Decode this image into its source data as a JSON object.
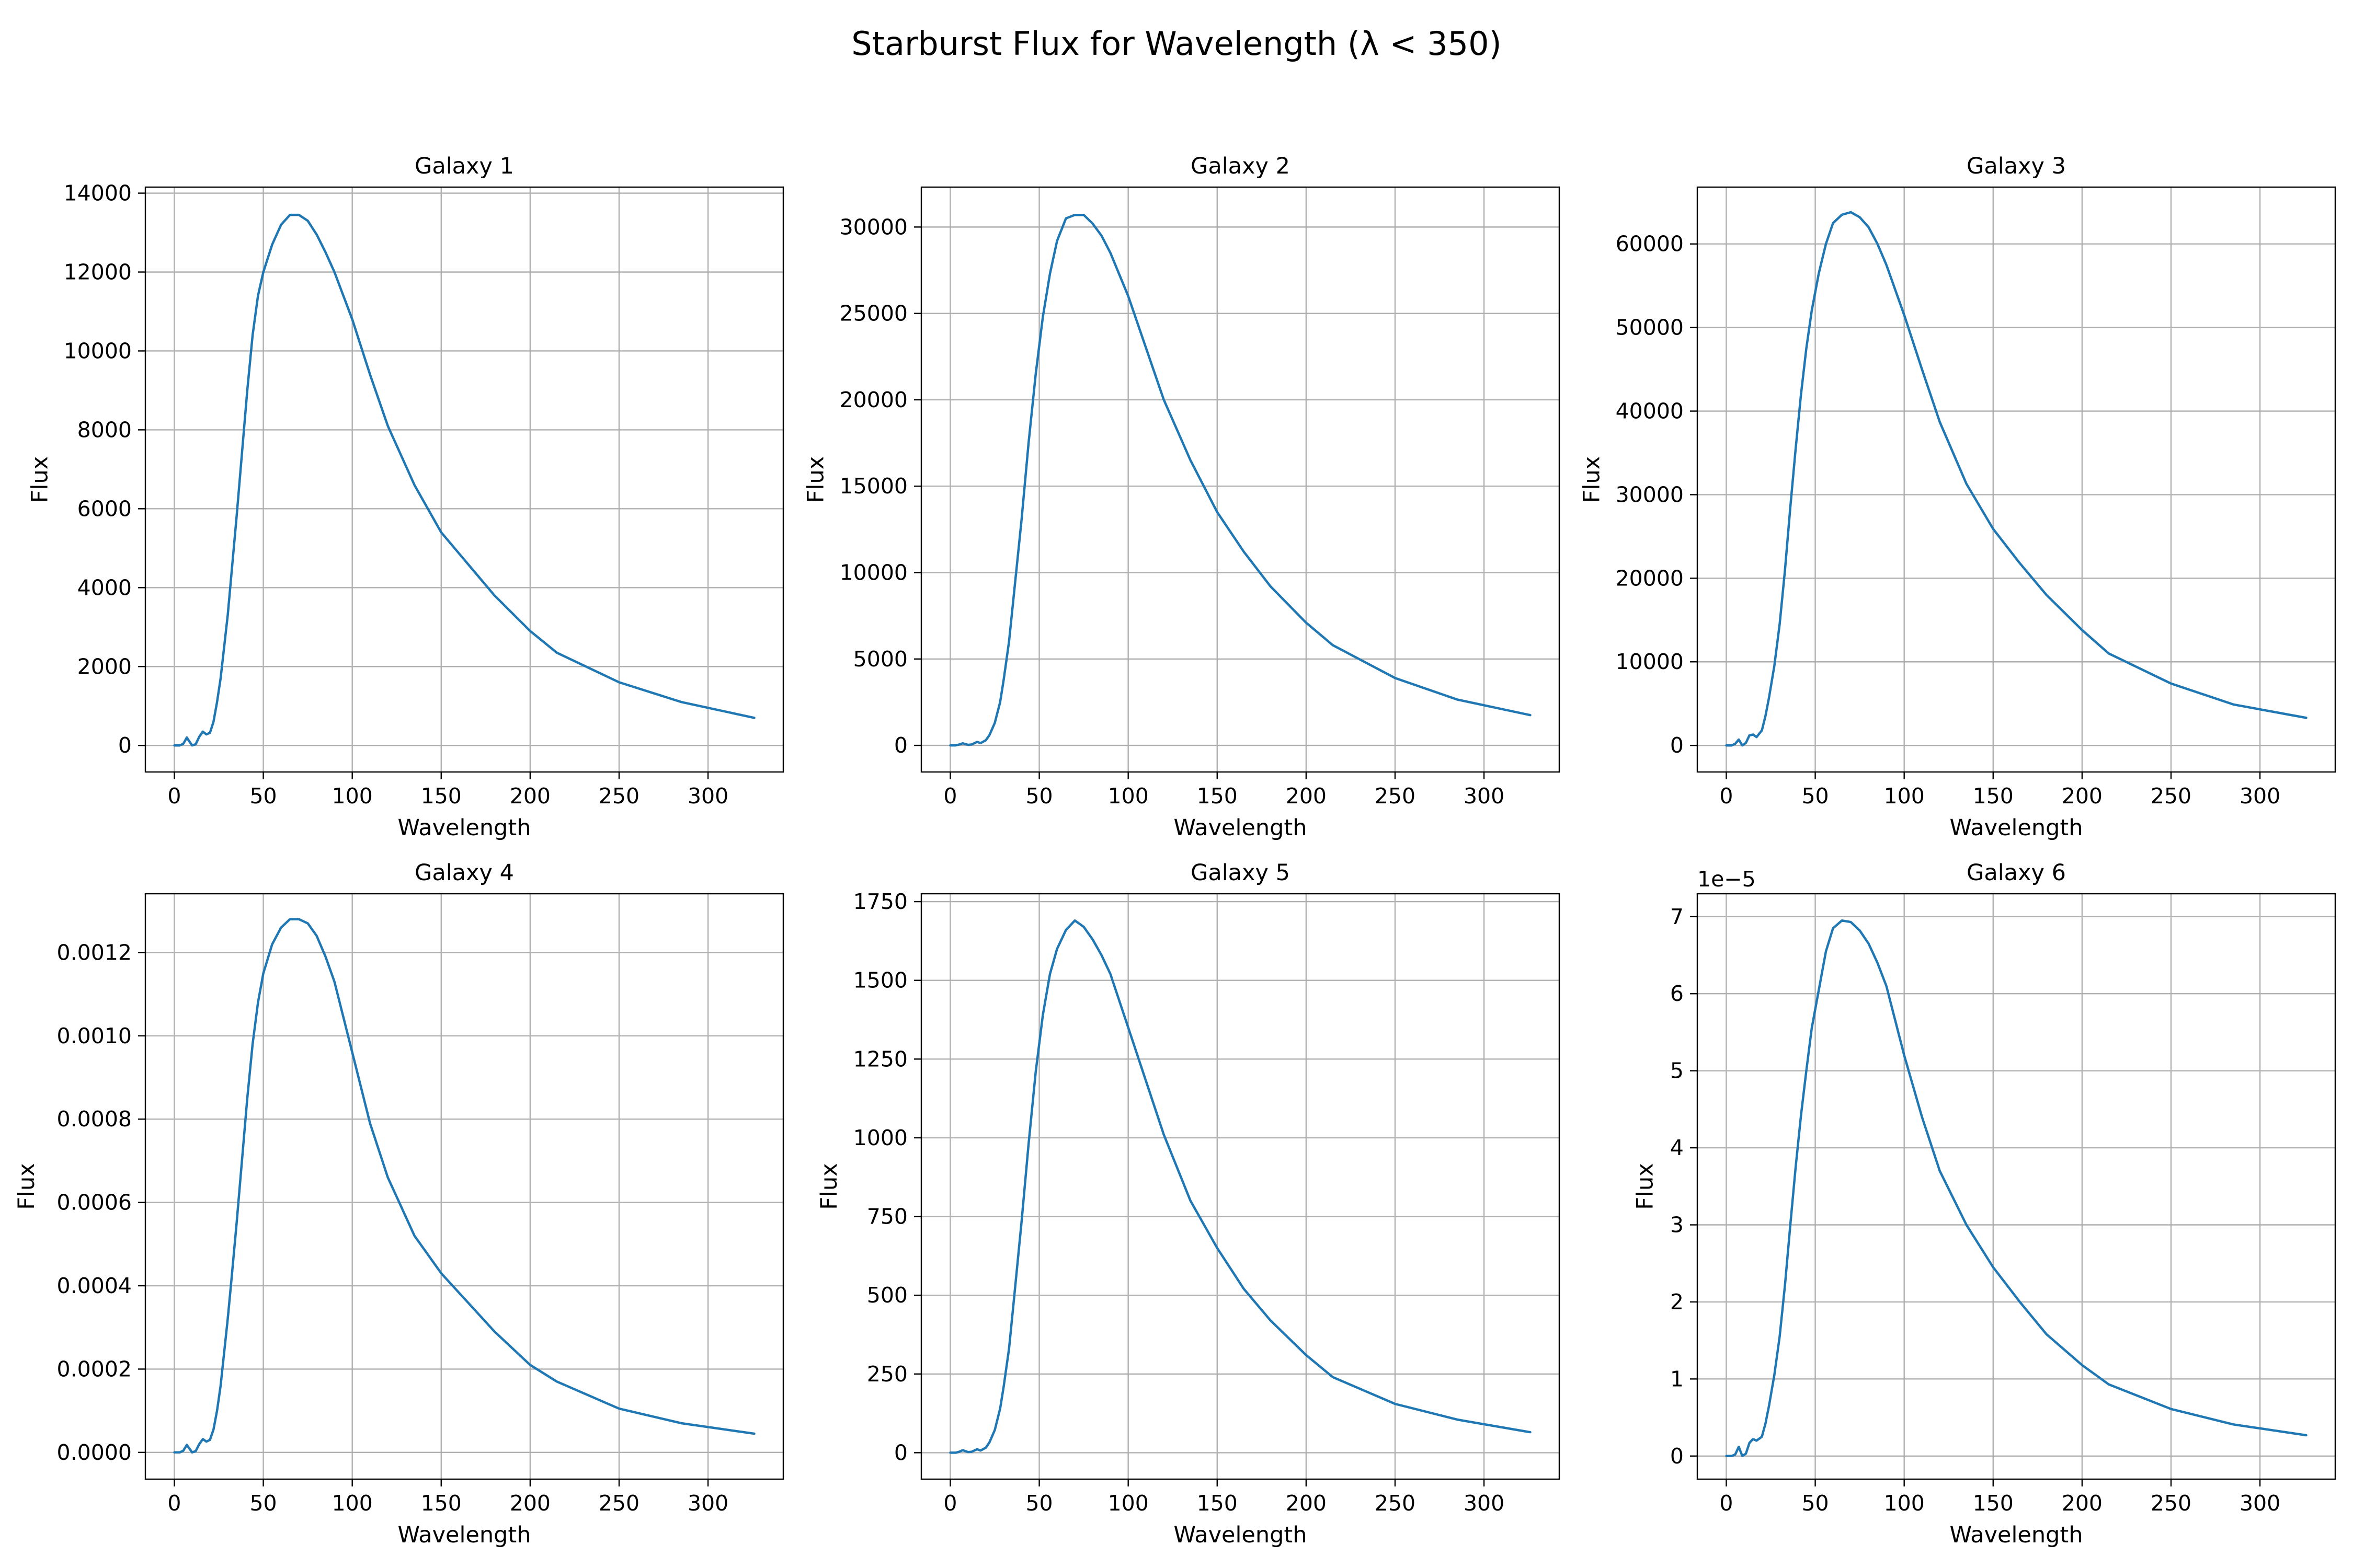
{
  "figure": {
    "suptitle": "Starburst Flux for Wavelength (λ < 350)"
  },
  "chart_data": [
    {
      "type": "line",
      "title": "Galaxy 1",
      "xlabel": "Wavelength",
      "ylabel": "Flux",
      "xlim": [
        -16.3,
        342.3
      ],
      "ylim": [
        -673,
        14153
      ],
      "xticks": [
        0,
        50,
        100,
        150,
        200,
        250,
        300
      ],
      "yticks": [
        0,
        2000,
        4000,
        6000,
        8000,
        10000,
        12000,
        14000
      ],
      "ytick_labels": [
        "0",
        "2000",
        "4000",
        "6000",
        "8000",
        "10000",
        "12000",
        "14000"
      ],
      "offset_label": "",
      "grid": true,
      "color": "#1f77b4",
      "series": [
        {
          "x": [
            0,
            3,
            5,
            7,
            8,
            10,
            12,
            14,
            16,
            18,
            20,
            22,
            24,
            26,
            28,
            30,
            32,
            35,
            38,
            41,
            44,
            47,
            50,
            55,
            60,
            65,
            70,
            75,
            80,
            85,
            90,
            100,
            110,
            120,
            135,
            150,
            165,
            180,
            200,
            215,
            250,
            285,
            326
          ],
          "y": [
            0,
            0,
            40,
            200,
            130,
            0,
            30,
            220,
            350,
            280,
            320,
            600,
            1100,
            1700,
            2500,
            3300,
            4300,
            5800,
            7400,
            9000,
            10400,
            11400,
            12000,
            12700,
            13200,
            13450,
            13450,
            13300,
            12950,
            12500,
            12000,
            10800,
            9400,
            8100,
            6600,
            5400,
            4600,
            3800,
            2900,
            2350,
            1600,
            1100,
            700
          ]
        }
      ]
    },
    {
      "type": "line",
      "title": "Galaxy 2",
      "xlabel": "Wavelength",
      "ylabel": "Flux",
      "xlim": [
        -16.3,
        342.3
      ],
      "ylim": [
        -1540,
        32310
      ],
      "xticks": [
        0,
        50,
        100,
        150,
        200,
        250,
        300
      ],
      "yticks": [
        0,
        5000,
        10000,
        15000,
        20000,
        25000,
        30000
      ],
      "ytick_labels": [
        "0",
        "5000",
        "10000",
        "15000",
        "20000",
        "25000",
        "30000"
      ],
      "offset_label": "",
      "grid": true,
      "color": "#1f77b4",
      "series": [
        {
          "x": [
            0,
            3,
            5,
            7,
            10,
            12,
            15,
            17,
            20,
            22,
            25,
            28,
            30,
            33,
            36,
            40,
            44,
            48,
            52,
            56,
            60,
            65,
            70,
            75,
            80,
            85,
            90,
            100,
            110,
            120,
            135,
            150,
            165,
            180,
            200,
            215,
            250,
            285,
            326
          ],
          "y": [
            0,
            0,
            50,
            120,
            30,
            50,
            200,
            130,
            300,
            600,
            1300,
            2500,
            3800,
            6000,
            9000,
            13000,
            17500,
            21500,
            24800,
            27300,
            29200,
            30500,
            30700,
            30700,
            30200,
            29500,
            28500,
            26000,
            23000,
            20000,
            16500,
            13500,
            11200,
            9200,
            7100,
            5800,
            3900,
            2650,
            1750
          ]
        }
      ]
    },
    {
      "type": "line",
      "title": "Galaxy 3",
      "xlabel": "Wavelength",
      "ylabel": "Flux",
      "xlim": [
        -16.3,
        342.3
      ],
      "ylim": [
        -3180,
        66800
      ],
      "xticks": [
        0,
        50,
        100,
        150,
        200,
        250,
        300
      ],
      "yticks": [
        0,
        10000,
        20000,
        30000,
        40000,
        50000,
        60000
      ],
      "ytick_labels": [
        "0",
        "10000",
        "20000",
        "30000",
        "40000",
        "50000",
        "60000"
      ],
      "offset_label": "",
      "grid": true,
      "color": "#1f77b4",
      "series": [
        {
          "x": [
            0,
            3,
            5,
            7,
            9,
            11,
            13,
            15,
            17,
            20,
            22,
            24,
            27,
            30,
            33,
            36,
            39,
            42,
            45,
            48,
            52,
            56,
            60,
            65,
            70,
            75,
            80,
            85,
            90,
            100,
            110,
            120,
            135,
            150,
            165,
            180,
            200,
            215,
            250,
            285,
            326
          ],
          "y": [
            0,
            0,
            200,
            700,
            0,
            300,
            1200,
            1300,
            1000,
            1800,
            3500,
            5700,
            9500,
            14500,
            21000,
            28500,
            35500,
            42000,
            47500,
            52000,
            56500,
            60000,
            62500,
            63500,
            63800,
            63200,
            62000,
            60000,
            57500,
            51500,
            45000,
            38700,
            31300,
            25900,
            21800,
            18000,
            13800,
            11000,
            7400,
            4900,
            3300
          ]
        }
      ]
    },
    {
      "type": "line",
      "title": "Galaxy 4",
      "xlabel": "Wavelength",
      "ylabel": "Flux",
      "xlim": [
        -16.3,
        342.3
      ],
      "ylim": [
        -6.42e-05,
        0.001341
      ],
      "xticks": [
        0,
        50,
        100,
        150,
        200,
        250,
        300
      ],
      "yticks": [
        0,
        0.0002,
        0.0004,
        0.0006,
        0.0008,
        0.001,
        0.0012
      ],
      "ytick_labels": [
        "0.0000",
        "0.0002",
        "0.0004",
        "0.0006",
        "0.0008",
        "0.0010",
        "0.0012"
      ],
      "offset_label": "",
      "grid": true,
      "color": "#1f77b4",
      "series": [
        {
          "x": [
            0,
            3,
            5,
            7,
            8,
            10,
            12,
            14,
            16,
            18,
            20,
            22,
            24,
            26,
            28,
            30,
            32,
            35,
            38,
            41,
            44,
            47,
            50,
            55,
            60,
            65,
            70,
            75,
            80,
            85,
            90,
            100,
            110,
            120,
            135,
            150,
            165,
            180,
            200,
            215,
            250,
            285,
            326
          ],
          "y": [
            0,
            0,
            4e-06,
            1.8e-05,
            1.2e-05,
            0,
            3e-06,
            2e-05,
            3.2e-05,
            2.6e-05,
            3e-05,
            5.5e-05,
            0.0001,
            0.00016,
            0.00024,
            0.00032,
            0.00041,
            0.00055,
            0.0007,
            0.00085,
            0.00098,
            0.00108,
            0.00115,
            0.00122,
            0.00126,
            0.00128,
            0.00128,
            0.00127,
            0.00124,
            0.00119,
            0.00113,
            0.00096,
            0.00079,
            0.00066,
            0.00052,
            0.00043,
            0.00036,
            0.00029,
            0.00021,
            0.00017,
            0.000105,
            7e-05,
            4.5e-05
          ]
        }
      ]
    },
    {
      "type": "line",
      "title": "Galaxy 5",
      "xlabel": "Wavelength",
      "ylabel": "Flux",
      "xlim": [
        -16.3,
        342.3
      ],
      "ylim": [
        -84,
        1775
      ],
      "xticks": [
        0,
        50,
        100,
        150,
        200,
        250,
        300
      ],
      "yticks": [
        0,
        250,
        500,
        750,
        1000,
        1250,
        1500,
        1750
      ],
      "ytick_labels": [
        "0",
        "250",
        "500",
        "750",
        "1000",
        "1250",
        "1500",
        "1750"
      ],
      "offset_label": "",
      "grid": true,
      "color": "#1f77b4",
      "series": [
        {
          "x": [
            0,
            3,
            5,
            7,
            10,
            12,
            15,
            17,
            20,
            22,
            25,
            28,
            30,
            33,
            36,
            40,
            44,
            48,
            52,
            56,
            60,
            65,
            70,
            75,
            80,
            85,
            90,
            100,
            110,
            120,
            135,
            150,
            165,
            180,
            200,
            215,
            250,
            285,
            326
          ],
          "y": [
            0,
            0,
            3,
            8,
            2,
            3,
            11,
            7,
            16,
            33,
            72,
            140,
            210,
            330,
            500,
            730,
            980,
            1210,
            1390,
            1520,
            1600,
            1660,
            1690,
            1670,
            1630,
            1580,
            1520,
            1350,
            1180,
            1010,
            800,
            650,
            520,
            420,
            310,
            240,
            155,
            105,
            65
          ]
        }
      ]
    },
    {
      "type": "line",
      "title": "Galaxy 6",
      "xlabel": "Wavelength",
      "ylabel": "Flux",
      "xlim": [
        -16.3,
        342.3
      ],
      "ylim": [
        -3e-06,
        7.297e-05
      ],
      "xticks": [
        0,
        50,
        100,
        150,
        200,
        250,
        300
      ],
      "yticks": [
        0,
        1e-05,
        2e-05,
        3e-05,
        4e-05,
        5e-05,
        6e-05,
        7e-05
      ],
      "ytick_labels": [
        "0",
        "1",
        "2",
        "3",
        "4",
        "5",
        "6",
        "7"
      ],
      "offset_label": "1e−5",
      "grid": true,
      "color": "#1f77b4",
      "series": [
        {
          "x": [
            0,
            3,
            5,
            7,
            9,
            11,
            13,
            15,
            17,
            20,
            22,
            24,
            27,
            30,
            33,
            36,
            39,
            42,
            45,
            48,
            52,
            56,
            60,
            65,
            70,
            75,
            80,
            85,
            90,
            100,
            110,
            120,
            135,
            150,
            165,
            180,
            200,
            215,
            250,
            285,
            326
          ],
          "y": [
            0,
            0,
            2e-07,
            1.2e-06,
            0,
            3e-07,
            1.7e-06,
            2.2e-06,
            2e-06,
            2.5e-06,
            4.2e-06,
            6.5e-06,
            1.05e-05,
            1.55e-05,
            2.22e-05,
            3e-05,
            3.75e-05,
            4.42e-05,
            5e-05,
            5.55e-05,
            6.05e-05,
            6.55e-05,
            6.85e-05,
            6.95e-05,
            6.93e-05,
            6.82e-05,
            6.65e-05,
            6.4e-05,
            6.1e-05,
            5.2e-05,
            4.4e-05,
            3.7e-05,
            3e-05,
            2.45e-05,
            2e-05,
            1.58e-05,
            1.18e-05,
            9.3e-06,
            6.1e-06,
            4.1e-06,
            2.7e-06
          ]
        }
      ]
    }
  ]
}
